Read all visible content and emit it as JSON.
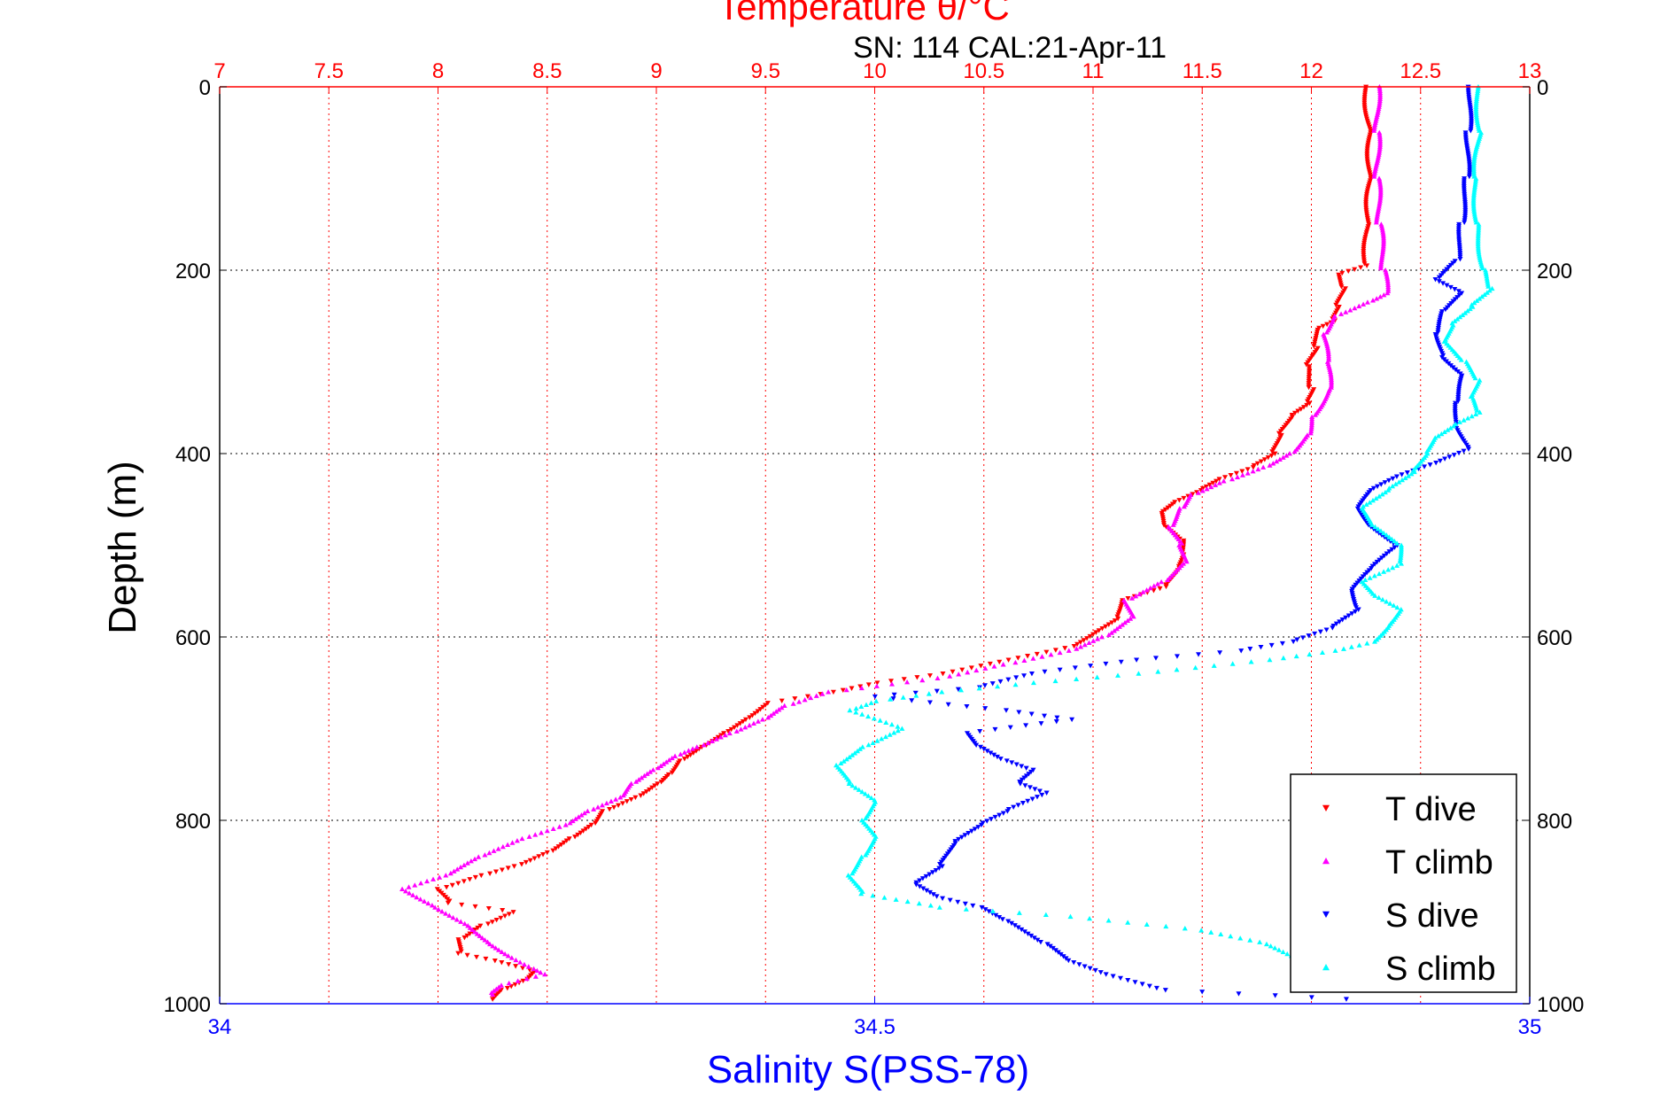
{
  "chart_data": {
    "type": "scatter",
    "title": "Temperature θ/°C",
    "subtitle": "SN: 114  CAL:21-Apr-11",
    "xlabel_top": "Temperature θ/°C",
    "xlabel_bottom": "Salinity S(PSS-78)",
    "ylabel": "Depth (m)",
    "x_top_ticks": [
      "7",
      "7.5",
      "8",
      "8.5",
      "9",
      "9.5",
      "10",
      "10.5",
      "11",
      "11.5",
      "12",
      "12.5",
      "13"
    ],
    "x_top_lim": [
      7,
      13
    ],
    "x_bottom_ticks": [
      "34",
      "34.5",
      "35"
    ],
    "x_bottom_lim": [
      34,
      35
    ],
    "y_ticks": [
      "0",
      "200",
      "400",
      "600",
      "800",
      "1000"
    ],
    "y_right_ticks": [
      "0",
      "200",
      "400",
      "600",
      "800",
      "1000"
    ],
    "ylim": [
      0,
      1000
    ],
    "y_reversed": true,
    "grid": true,
    "legend_position": "bottom-right",
    "colors": {
      "temperature_axis": "#ff0000",
      "salinity_axis": "#0000ff",
      "T dive": "#ff0000",
      "T climb": "#ff00ff",
      "S dive": "#0000ff",
      "S climb": "#00ffff"
    },
    "series": [
      {
        "name": "T dive",
        "axis": "temperature",
        "color": "#ff0000",
        "points": [
          [
            12.25,
            0
          ],
          [
            12.27,
            50
          ],
          [
            12.27,
            100
          ],
          [
            12.26,
            150
          ],
          [
            12.25,
            195
          ],
          [
            12.12,
            205
          ],
          [
            12.15,
            220
          ],
          [
            12.12,
            240
          ],
          [
            12.1,
            255
          ],
          [
            12.02,
            265
          ],
          [
            12.02,
            285
          ],
          [
            11.98,
            305
          ],
          [
            12.0,
            330
          ],
          [
            11.98,
            345
          ],
          [
            11.9,
            360
          ],
          [
            11.85,
            380
          ],
          [
            11.82,
            400
          ],
          [
            11.72,
            415
          ],
          [
            11.55,
            430
          ],
          [
            11.48,
            440
          ],
          [
            11.35,
            455
          ],
          [
            11.3,
            465
          ],
          [
            11.32,
            480
          ],
          [
            11.4,
            495
          ],
          [
            11.4,
            510
          ],
          [
            11.38,
            525
          ],
          [
            11.32,
            545
          ],
          [
            11.12,
            560
          ],
          [
            11.1,
            580
          ],
          [
            11.0,
            595
          ],
          [
            10.9,
            610
          ],
          [
            10.6,
            625
          ],
          [
            10.3,
            640
          ],
          [
            10.0,
            650
          ],
          [
            9.8,
            660
          ],
          [
            9.5,
            672
          ],
          [
            9.4,
            690
          ],
          [
            9.3,
            705
          ],
          [
            9.2,
            720
          ],
          [
            9.1,
            735
          ],
          [
            9.05,
            750
          ],
          [
            9.0,
            760
          ],
          [
            8.9,
            775
          ],
          [
            8.75,
            790
          ],
          [
            8.7,
            805
          ],
          [
            8.6,
            820
          ],
          [
            8.5,
            835
          ],
          [
            8.35,
            850
          ],
          [
            8.2,
            860
          ],
          [
            8.0,
            875
          ],
          [
            8.05,
            890
          ],
          [
            8.35,
            900
          ],
          [
            8.2,
            915
          ],
          [
            8.1,
            930
          ],
          [
            8.1,
            945
          ],
          [
            8.3,
            955
          ],
          [
            8.45,
            965
          ],
          [
            8.4,
            975
          ],
          [
            8.3,
            985
          ],
          [
            8.25,
            995
          ]
        ]
      },
      {
        "name": "T climb",
        "axis": "temperature",
        "color": "#ff00ff",
        "points": [
          [
            12.3,
            0
          ],
          [
            12.3,
            50
          ],
          [
            12.3,
            100
          ],
          [
            12.31,
            150
          ],
          [
            12.33,
            200
          ],
          [
            12.34,
            225
          ],
          [
            12.25,
            235
          ],
          [
            12.1,
            250
          ],
          [
            12.05,
            270
          ],
          [
            12.07,
            300
          ],
          [
            12.08,
            330
          ],
          [
            12.0,
            360
          ],
          [
            11.98,
            380
          ],
          [
            11.9,
            400
          ],
          [
            11.78,
            415
          ],
          [
            11.6,
            430
          ],
          [
            11.45,
            445
          ],
          [
            11.4,
            460
          ],
          [
            11.35,
            480
          ],
          [
            11.4,
            500
          ],
          [
            11.42,
            520
          ],
          [
            11.32,
            540
          ],
          [
            11.15,
            560
          ],
          [
            11.18,
            580
          ],
          [
            11.05,
            600
          ],
          [
            10.9,
            615
          ],
          [
            10.6,
            630
          ],
          [
            10.3,
            645
          ],
          [
            9.8,
            660
          ],
          [
            9.6,
            675
          ],
          [
            9.5,
            690
          ],
          [
            9.35,
            705
          ],
          [
            9.2,
            720
          ],
          [
            9.1,
            730
          ],
          [
            9.0,
            745
          ],
          [
            8.9,
            760
          ],
          [
            8.85,
            775
          ],
          [
            8.7,
            790
          ],
          [
            8.6,
            805
          ],
          [
            8.4,
            820
          ],
          [
            8.2,
            840
          ],
          [
            8.05,
            860
          ],
          [
            7.85,
            875
          ],
          [
            8.0,
            895
          ],
          [
            8.15,
            915
          ],
          [
            8.25,
            935
          ],
          [
            8.35,
            950
          ],
          [
            8.45,
            962
          ],
          [
            8.5,
            968
          ],
          [
            8.3,
            980
          ],
          [
            8.25,
            990
          ]
        ]
      },
      {
        "name": "S dive",
        "axis": "salinity",
        "color": "#0000ff",
        "points": [
          [
            34.955,
            0
          ],
          [
            34.953,
            50
          ],
          [
            34.952,
            100
          ],
          [
            34.948,
            150
          ],
          [
            34.945,
            190
          ],
          [
            34.93,
            210
          ],
          [
            34.95,
            225
          ],
          [
            34.935,
            245
          ],
          [
            34.93,
            270
          ],
          [
            34.935,
            295
          ],
          [
            34.95,
            315
          ],
          [
            34.945,
            345
          ],
          [
            34.945,
            370
          ],
          [
            34.955,
            395
          ],
          [
            34.93,
            410
          ],
          [
            34.9,
            425
          ],
          [
            34.88,
            440
          ],
          [
            34.87,
            460
          ],
          [
            34.88,
            480
          ],
          [
            34.9,
            500
          ],
          [
            34.88,
            525
          ],
          [
            34.865,
            550
          ],
          [
            34.87,
            570
          ],
          [
            34.85,
            590
          ],
          [
            34.82,
            605
          ],
          [
            34.78,
            615
          ],
          [
            34.7,
            625
          ],
          [
            34.62,
            640
          ],
          [
            34.58,
            655
          ],
          [
            34.5,
            665
          ],
          [
            34.6,
            680
          ],
          [
            34.65,
            690
          ],
          [
            34.57,
            705
          ],
          [
            34.58,
            720
          ],
          [
            34.6,
            735
          ],
          [
            34.62,
            745
          ],
          [
            34.61,
            760
          ],
          [
            34.63,
            770
          ],
          [
            34.6,
            790
          ],
          [
            34.58,
            805
          ],
          [
            34.56,
            825
          ],
          [
            34.55,
            850
          ],
          [
            34.53,
            870
          ],
          [
            34.55,
            885
          ],
          [
            34.58,
            895
          ],
          [
            34.6,
            910
          ],
          [
            34.63,
            935
          ],
          [
            34.65,
            955
          ],
          [
            34.68,
            970
          ],
          [
            34.72,
            985
          ],
          [
            34.86,
            995
          ]
        ]
      },
      {
        "name": "S climb",
        "axis": "salinity",
        "color": "#00ffff",
        "points": [
          [
            34.96,
            0
          ],
          [
            34.962,
            50
          ],
          [
            34.958,
            100
          ],
          [
            34.96,
            150
          ],
          [
            34.965,
            200
          ],
          [
            34.97,
            220
          ],
          [
            34.955,
            240
          ],
          [
            34.94,
            260
          ],
          [
            34.935,
            280
          ],
          [
            34.95,
            300
          ],
          [
            34.96,
            320
          ],
          [
            34.955,
            340
          ],
          [
            34.96,
            355
          ],
          [
            34.94,
            370
          ],
          [
            34.925,
            385
          ],
          [
            34.92,
            400
          ],
          [
            34.91,
            420
          ],
          [
            34.89,
            440
          ],
          [
            34.87,
            460
          ],
          [
            34.88,
            480
          ],
          [
            34.9,
            500
          ],
          [
            34.9,
            520
          ],
          [
            34.87,
            540
          ],
          [
            34.88,
            555
          ],
          [
            34.9,
            570
          ],
          [
            34.89,
            590
          ],
          [
            34.88,
            605
          ],
          [
            34.85,
            615
          ],
          [
            34.8,
            625
          ],
          [
            34.7,
            640
          ],
          [
            34.62,
            650
          ],
          [
            34.55,
            660
          ],
          [
            34.5,
            670
          ],
          [
            34.48,
            680
          ],
          [
            34.52,
            700
          ],
          [
            34.49,
            720
          ],
          [
            34.47,
            740
          ],
          [
            34.48,
            760
          ],
          [
            34.5,
            780
          ],
          [
            34.49,
            800
          ],
          [
            34.5,
            820
          ],
          [
            34.49,
            840
          ],
          [
            34.48,
            860
          ],
          [
            34.49,
            880
          ],
          [
            34.55,
            895
          ],
          [
            34.65,
            905
          ],
          [
            34.75,
            920
          ],
          [
            34.8,
            935
          ],
          [
            34.82,
            950
          ],
          [
            34.85,
            965
          ],
          [
            34.84,
            985
          ]
        ]
      }
    ]
  }
}
